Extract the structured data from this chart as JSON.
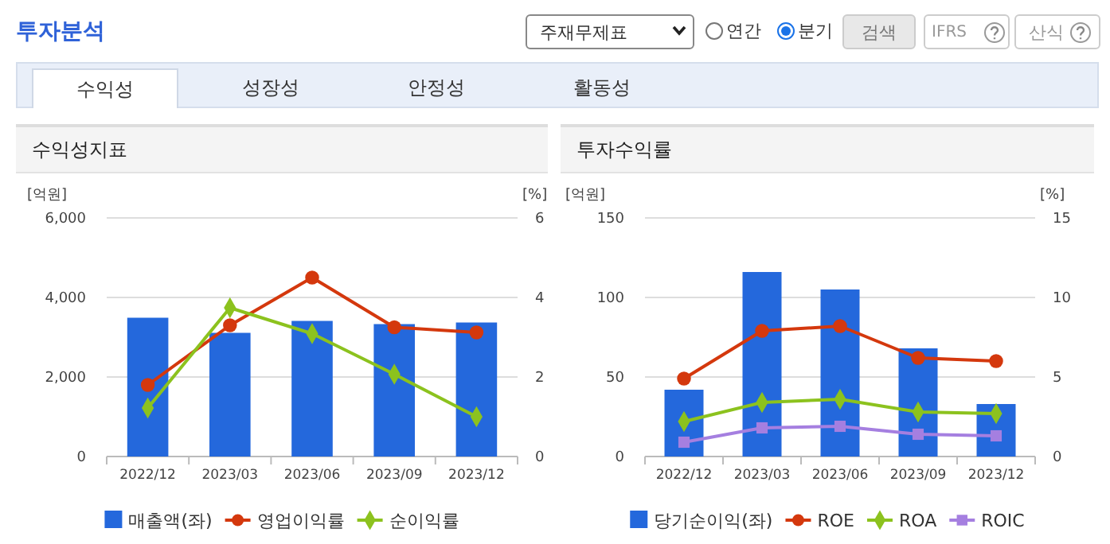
{
  "chart_data": [
    {
      "type": "other",
      "title": "투자분석",
      "annotations": [
        "주재무제표",
        "연간",
        "분기",
        "검색",
        "IFRS",
        "산식",
        "수익성",
        "성장성",
        "안정성",
        "활동성"
      ]
    },
    {
      "type": "bar",
      "title": "수익성지표",
      "ylabel": "[억원]",
      "y2label": "[%]",
      "categories": [
        "2022/12",
        "2023/03",
        "2023/06",
        "2023/09",
        "2023/12"
      ],
      "ylim": [
        0,
        6000
      ],
      "yticks": [
        0,
        {
          "value": 2000,
          "label": "2,000"
        },
        {
          "value": 4000,
          "label": "4,000"
        },
        {
          "value": 6000,
          "label": "6,000"
        }
      ],
      "y2lim": [
        0,
        6
      ],
      "y2ticks": [
        0,
        2,
        4,
        6
      ],
      "grid": "y",
      "legend": "bottom",
      "series": [
        {
          "name": "매출액(좌)",
          "type": "bar",
          "color": "#2468dc",
          "values": [
            3490,
            3110,
            3410,
            3330,
            3370
          ]
        },
        {
          "name": "영업이익률",
          "type": "line",
          "axis": "y2",
          "marker": "circle",
          "color": "#d4380d",
          "values": [
            1.8,
            3.3,
            4.5,
            3.25,
            3.12
          ]
        },
        {
          "name": "순이익률",
          "type": "line",
          "axis": "y2",
          "marker": "diamond",
          "color": "#8cc21e",
          "values": [
            1.22,
            3.74,
            3.09,
            2.07,
            1.0
          ]
        }
      ]
    },
    {
      "type": "bar",
      "title": "투자수익률",
      "ylabel": "[억원]",
      "y2label": "[%]",
      "categories": [
        "2022/12",
        "2023/03",
        "2023/06",
        "2023/09",
        "2023/12"
      ],
      "ylim": [
        0,
        150
      ],
      "yticks": [
        0,
        50,
        100,
        150
      ],
      "y2lim": [
        0,
        15
      ],
      "y2ticks": [
        0,
        5,
        10,
        15
      ],
      "grid": "y",
      "legend": "bottom",
      "series": [
        {
          "name": "당기순이익(좌)",
          "type": "bar",
          "color": "#2468dc",
          "values": [
            42,
            116,
            105,
            68,
            33
          ]
        },
        {
          "name": "ROE",
          "type": "line",
          "axis": "y2",
          "marker": "circle",
          "color": "#d4380d",
          "values": [
            4.9,
            7.9,
            8.2,
            6.2,
            6.0
          ]
        },
        {
          "name": "ROA",
          "type": "line",
          "axis": "y2",
          "marker": "diamond",
          "color": "#8cc21e",
          "values": [
            2.2,
            3.4,
            3.6,
            2.8,
            2.7
          ]
        },
        {
          "name": "ROIC",
          "type": "line",
          "axis": "y2",
          "marker": "square",
          "color": "#a57fe0",
          "values": [
            0.9,
            1.8,
            1.9,
            1.4,
            1.3
          ]
        }
      ]
    }
  ]
}
